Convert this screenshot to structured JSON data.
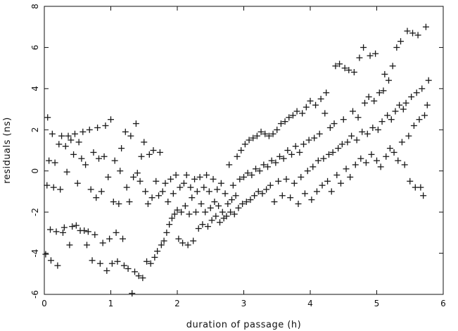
{
  "chart_data": {
    "type": "scatter",
    "marker": "plus",
    "title": "",
    "xlabel": "duration of passage (h)",
    "ylabel": "residuals (ns)",
    "xlim": [
      0,
      6
    ],
    "ylim": [
      -6,
      8
    ],
    "xticks": [
      0,
      1,
      2,
      3,
      4,
      5,
      6
    ],
    "yticks": [
      -6,
      -4,
      -2,
      0,
      2,
      4,
      6,
      8
    ],
    "grid": false,
    "legend": "none",
    "color": "#1a1a1a",
    "points": [
      [
        0.02,
        -4.05
      ],
      [
        0.04,
        -0.7
      ],
      [
        0.05,
        2.6
      ],
      [
        0.07,
        0.5
      ],
      [
        0.09,
        -2.85
      ],
      [
        0.1,
        -4.35
      ],
      [
        0.12,
        1.8
      ],
      [
        0.14,
        -0.8
      ],
      [
        0.16,
        0.4
      ],
      [
        0.18,
        -2.95
      ],
      [
        0.2,
        -4.6
      ],
      [
        0.22,
        1.3
      ],
      [
        0.24,
        -0.9
      ],
      [
        0.26,
        1.7
      ],
      [
        0.28,
        -3.0
      ],
      [
        0.3,
        -2.75
      ],
      [
        0.32,
        1.2
      ],
      [
        0.34,
        -0.05
      ],
      [
        0.36,
        1.7
      ],
      [
        0.38,
        -3.6
      ],
      [
        0.4,
        1.5
      ],
      [
        0.42,
        -2.7
      ],
      [
        0.44,
        0.8
      ],
      [
        0.46,
        1.8
      ],
      [
        0.48,
        -2.65
      ],
      [
        0.5,
        -0.6
      ],
      [
        0.52,
        1.4
      ],
      [
        0.54,
        -2.9
      ],
      [
        0.56,
        0.6
      ],
      [
        0.58,
        1.9
      ],
      [
        0.6,
        -2.9
      ],
      [
        0.62,
        0.3
      ],
      [
        0.64,
        -3.6
      ],
      [
        0.66,
        -2.95
      ],
      [
        0.68,
        2.0
      ],
      [
        0.7,
        -0.9
      ],
      [
        0.72,
        -4.35
      ],
      [
        0.74,
        0.9
      ],
      [
        0.76,
        -3.1
      ],
      [
        0.78,
        -1.3
      ],
      [
        0.8,
        2.1
      ],
      [
        0.82,
        0.6
      ],
      [
        0.84,
        -4.5
      ],
      [
        0.86,
        -1.0
      ],
      [
        0.88,
        -3.5
      ],
      [
        0.9,
        0.7
      ],
      [
        0.92,
        2.2
      ],
      [
        0.94,
        -4.85
      ],
      [
        0.96,
        -0.3
      ],
      [
        0.98,
        -3.3
      ],
      [
        1.0,
        2.5
      ],
      [
        1.02,
        -4.5
      ],
      [
        1.04,
        -1.5
      ],
      [
        1.06,
        0.5
      ],
      [
        1.08,
        -3.0
      ],
      [
        1.1,
        -4.4
      ],
      [
        1.12,
        -1.6
      ],
      [
        1.14,
        0.0
      ],
      [
        1.16,
        1.1
      ],
      [
        1.18,
        -3.3
      ],
      [
        1.2,
        -4.6
      ],
      [
        1.22,
        1.9
      ],
      [
        1.24,
        -0.8
      ],
      [
        1.26,
        -4.75
      ],
      [
        1.28,
        -1.5
      ],
      [
        1.3,
        1.7
      ],
      [
        1.32,
        -5.95
      ],
      [
        1.34,
        -0.3
      ],
      [
        1.36,
        -4.9
      ],
      [
        1.38,
        2.3
      ],
      [
        1.4,
        -0.1
      ],
      [
        1.42,
        -5.1
      ],
      [
        1.44,
        -0.5
      ],
      [
        1.46,
        0.7
      ],
      [
        1.48,
        -5.2
      ],
      [
        1.5,
        1.4
      ],
      [
        1.52,
        -1.0
      ],
      [
        1.54,
        -4.4
      ],
      [
        1.56,
        -1.6
      ],
      [
        1.58,
        0.8
      ],
      [
        1.6,
        -4.5
      ],
      [
        1.62,
        -1.3
      ],
      [
        1.64,
        1.0
      ],
      [
        1.66,
        -4.2
      ],
      [
        1.68,
        -0.5
      ],
      [
        1.7,
        -3.9
      ],
      [
        1.72,
        -1.2
      ],
      [
        1.74,
        0.9
      ],
      [
        1.76,
        -3.6
      ],
      [
        1.78,
        -1.0
      ],
      [
        1.8,
        -3.4
      ],
      [
        1.82,
        -0.6
      ],
      [
        1.84,
        -3.0
      ],
      [
        1.86,
        -1.5
      ],
      [
        1.88,
        -2.6
      ],
      [
        1.9,
        -0.4
      ],
      [
        1.92,
        -2.3
      ],
      [
        1.94,
        -1.1
      ],
      [
        1.96,
        -2.1
      ],
      [
        1.98,
        -0.2
      ],
      [
        2.0,
        -1.9
      ],
      [
        2.02,
        -3.3
      ],
      [
        2.04,
        -0.8
      ],
      [
        2.06,
        -2.0
      ],
      [
        2.08,
        -3.5
      ],
      [
        2.1,
        -0.6
      ],
      [
        2.12,
        -1.7
      ],
      [
        2.14,
        -0.2
      ],
      [
        2.16,
        -3.6
      ],
      [
        2.18,
        -2.1
      ],
      [
        2.2,
        -0.8
      ],
      [
        2.22,
        -1.3
      ],
      [
        2.24,
        -3.4
      ],
      [
        2.26,
        -0.4
      ],
      [
        2.28,
        -2.0
      ],
      [
        2.3,
        -1.0
      ],
      [
        2.32,
        -2.8
      ],
      [
        2.34,
        -0.3
      ],
      [
        2.36,
        -1.6
      ],
      [
        2.38,
        -2.6
      ],
      [
        2.4,
        -0.8
      ],
      [
        2.42,
        -2.0
      ],
      [
        2.44,
        -0.2
      ],
      [
        2.46,
        -2.7
      ],
      [
        2.48,
        -1.0
      ],
      [
        2.5,
        -1.8
      ],
      [
        2.52,
        -2.4
      ],
      [
        2.54,
        -0.4
      ],
      [
        2.56,
        -1.5
      ],
      [
        2.58,
        -2.2
      ],
      [
        2.6,
        -0.9
      ],
      [
        2.62,
        -1.7
      ],
      [
        2.64,
        -2.5
      ],
      [
        2.66,
        -0.6
      ],
      [
        2.68,
        -2.0
      ],
      [
        2.7,
        -2.3
      ],
      [
        2.72,
        -1.1
      ],
      [
        2.74,
        -2.2
      ],
      [
        2.76,
        -1.6
      ],
      [
        2.78,
        0.3
      ],
      [
        2.8,
        -2.0
      ],
      [
        2.82,
        -1.4
      ],
      [
        2.84,
        -0.7
      ],
      [
        2.86,
        -2.1
      ],
      [
        2.88,
        -1.2
      ],
      [
        2.9,
        0.7
      ],
      [
        2.92,
        -1.8
      ],
      [
        2.94,
        -0.4
      ],
      [
        2.96,
        1.0
      ],
      [
        2.98,
        -1.6
      ],
      [
        3.0,
        -0.3
      ],
      [
        3.02,
        1.3
      ],
      [
        3.04,
        -1.5
      ],
      [
        3.06,
        -0.1
      ],
      [
        3.08,
        1.5
      ],
      [
        3.1,
        -1.4
      ],
      [
        3.12,
        -0.2
      ],
      [
        3.14,
        1.6
      ],
      [
        3.16,
        -1.2
      ],
      [
        3.18,
        0.1
      ],
      [
        3.2,
        1.7
      ],
      [
        3.22,
        -1.0
      ],
      [
        3.24,
        0.0
      ],
      [
        3.26,
        1.9
      ],
      [
        3.28,
        -1.1
      ],
      [
        3.3,
        0.3
      ],
      [
        3.32,
        1.8
      ],
      [
        3.34,
        -0.9
      ],
      [
        3.36,
        0.2
      ],
      [
        3.38,
        1.7
      ],
      [
        3.4,
        -0.7
      ],
      [
        3.42,
        0.5
      ],
      [
        3.44,
        1.8
      ],
      [
        3.46,
        -1.5
      ],
      [
        3.48,
        0.4
      ],
      [
        3.5,
        2.0
      ],
      [
        3.52,
        -0.5
      ],
      [
        3.54,
        0.7
      ],
      [
        3.56,
        2.3
      ],
      [
        3.58,
        -1.2
      ],
      [
        3.6,
        0.6
      ],
      [
        3.62,
        2.4
      ],
      [
        3.64,
        -0.4
      ],
      [
        3.66,
        1.0
      ],
      [
        3.68,
        2.6
      ],
      [
        3.7,
        -1.3
      ],
      [
        3.72,
        0.8
      ],
      [
        3.74,
        2.7
      ],
      [
        3.76,
        -0.6
      ],
      [
        3.78,
        1.2
      ],
      [
        3.8,
        2.9
      ],
      [
        3.82,
        -1.6
      ],
      [
        3.84,
        0.9
      ],
      [
        3.86,
        -0.3
      ],
      [
        3.88,
        2.8
      ],
      [
        3.9,
        1.3
      ],
      [
        3.92,
        -1.1
      ],
      [
        3.94,
        3.1
      ],
      [
        3.96,
        0.0
      ],
      [
        3.98,
        1.5
      ],
      [
        4.0,
        3.4
      ],
      [
        4.02,
        -1.4
      ],
      [
        4.04,
        0.2
      ],
      [
        4.06,
        1.6
      ],
      [
        4.08,
        3.2
      ],
      [
        4.1,
        -1.0
      ],
      [
        4.12,
        0.5
      ],
      [
        4.14,
        1.8
      ],
      [
        4.16,
        3.5
      ],
      [
        4.18,
        -0.7
      ],
      [
        4.2,
        0.6
      ],
      [
        4.22,
        2.8
      ],
      [
        4.24,
        3.8
      ],
      [
        4.26,
        -0.5
      ],
      [
        4.28,
        0.8
      ],
      [
        4.3,
        2.1
      ],
      [
        4.32,
        -1.0
      ],
      [
        4.34,
        0.9
      ],
      [
        4.36,
        2.3
      ],
      [
        4.38,
        5.1
      ],
      [
        4.4,
        -0.2
      ],
      [
        4.42,
        1.1
      ],
      [
        4.44,
        5.2
      ],
      [
        4.46,
        -0.6
      ],
      [
        4.48,
        1.3
      ],
      [
        4.5,
        2.5
      ],
      [
        4.52,
        5.0
      ],
      [
        4.54,
        0.1
      ],
      [
        4.56,
        1.4
      ],
      [
        4.58,
        4.9
      ],
      [
        4.6,
        -0.3
      ],
      [
        4.62,
        1.7
      ],
      [
        4.64,
        2.9
      ],
      [
        4.66,
        4.8
      ],
      [
        4.68,
        0.3
      ],
      [
        4.7,
        1.5
      ],
      [
        4.72,
        2.6
      ],
      [
        4.74,
        5.5
      ],
      [
        4.76,
        0.6
      ],
      [
        4.78,
        1.9
      ],
      [
        4.8,
        6.0
      ],
      [
        4.82,
        3.3
      ],
      [
        4.84,
        0.4
      ],
      [
        4.86,
        1.8
      ],
      [
        4.88,
        3.6
      ],
      [
        4.9,
        5.6
      ],
      [
        4.92,
        0.8
      ],
      [
        4.94,
        2.1
      ],
      [
        4.96,
        3.4
      ],
      [
        4.98,
        5.7
      ],
      [
        5.0,
        0.5
      ],
      [
        5.02,
        2.0
      ],
      [
        5.04,
        3.8
      ],
      [
        5.06,
        0.2
      ],
      [
        5.08,
        2.4
      ],
      [
        5.1,
        3.9
      ],
      [
        5.12,
        4.7
      ],
      [
        5.14,
        0.7
      ],
      [
        5.16,
        2.7
      ],
      [
        5.18,
        4.4
      ],
      [
        5.2,
        1.1
      ],
      [
        5.22,
        2.5
      ],
      [
        5.24,
        5.1
      ],
      [
        5.26,
        0.9
      ],
      [
        5.28,
        2.9
      ],
      [
        5.3,
        6.0
      ],
      [
        5.32,
        0.5
      ],
      [
        5.34,
        3.2
      ],
      [
        5.36,
        6.3
      ],
      [
        5.38,
        1.4
      ],
      [
        5.4,
        3.0
      ],
      [
        5.42,
        0.3
      ],
      [
        5.44,
        3.3
      ],
      [
        5.46,
        6.8
      ],
      [
        5.48,
        1.7
      ],
      [
        5.5,
        -0.5
      ],
      [
        5.52,
        3.6
      ],
      [
        5.54,
        6.7
      ],
      [
        5.56,
        2.2
      ],
      [
        5.58,
        -0.8
      ],
      [
        5.6,
        3.8
      ],
      [
        5.62,
        6.6
      ],
      [
        5.64,
        2.5
      ],
      [
        5.66,
        -0.8
      ],
      [
        5.68,
        4.0
      ],
      [
        5.7,
        -1.2
      ],
      [
        5.72,
        2.7
      ],
      [
        5.74,
        7.0
      ],
      [
        5.76,
        3.2
      ],
      [
        5.78,
        4.4
      ]
    ]
  }
}
